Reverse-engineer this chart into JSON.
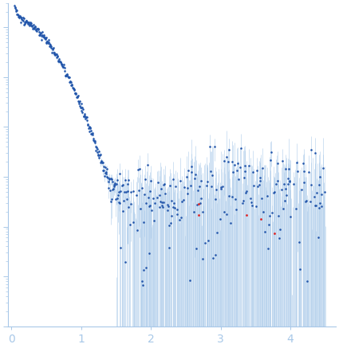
{
  "xlim": [
    -0.05,
    4.65
  ],
  "ylim": [
    1e-05,
    30
  ],
  "xticks": [
    0,
    1,
    2,
    3,
    4
  ],
  "axis_color": "#a8c8e8",
  "dot_color": "#2255aa",
  "outlier_color": "#dd2222",
  "error_color": "#a8c8e8",
  "dot_size": 3.5,
  "outlier_size": 4,
  "figsize": [
    4.25,
    4.37
  ],
  "dpi": 100
}
